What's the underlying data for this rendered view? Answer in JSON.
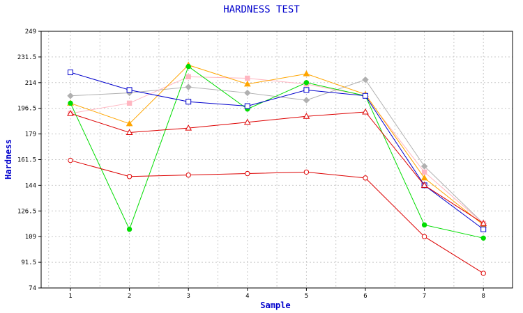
{
  "chart_data": {
    "type": "line",
    "title": "HARDNESS TEST",
    "xlabel": "Sample",
    "ylabel": "Hardness",
    "x": [
      1,
      2,
      3,
      4,
      5,
      6,
      7,
      8
    ],
    "x_tick_labels": [
      "1",
      "2",
      "3",
      "4",
      "5",
      "6",
      "7",
      "8"
    ],
    "ylim": [
      74,
      249
    ],
    "y_tick_labels": [
      "74",
      "91.5",
      "109",
      "126.5",
      "144",
      "161.5",
      "179",
      "196.5",
      "214",
      "231.5",
      "249"
    ],
    "grid": true,
    "legend": "none",
    "series": [
      {
        "color": "#b0b0b0",
        "marker": "diamond",
        "values": [
          205,
          207,
          211,
          207,
          202,
          216,
          157,
          118
        ]
      },
      {
        "color": "#ffb6c1",
        "marker": "square-filled",
        "values": [
          193,
          200,
          218,
          217,
          213,
          205,
          153,
          118
        ]
      },
      {
        "color": "#ffa500",
        "marker": "triangle-filled",
        "values": [
          200,
          186,
          226,
          213,
          220,
          206,
          149,
          117
        ]
      },
      {
        "color": "#00dd00",
        "marker": "circle-filled",
        "values": [
          200,
          114,
          225,
          196,
          214,
          205,
          117,
          108
        ]
      },
      {
        "color": "#0000cc",
        "marker": "square",
        "values": [
          221,
          209,
          201,
          198,
          209,
          205,
          144,
          114
        ]
      },
      {
        "color": "#dd0000",
        "marker": "triangle",
        "values": [
          193,
          180,
          183,
          187,
          191,
          194,
          144,
          118
        ]
      },
      {
        "color": "#dd0000",
        "marker": "circle",
        "values": [
          161,
          150,
          151,
          152,
          153,
          149,
          109,
          84
        ]
      }
    ]
  }
}
